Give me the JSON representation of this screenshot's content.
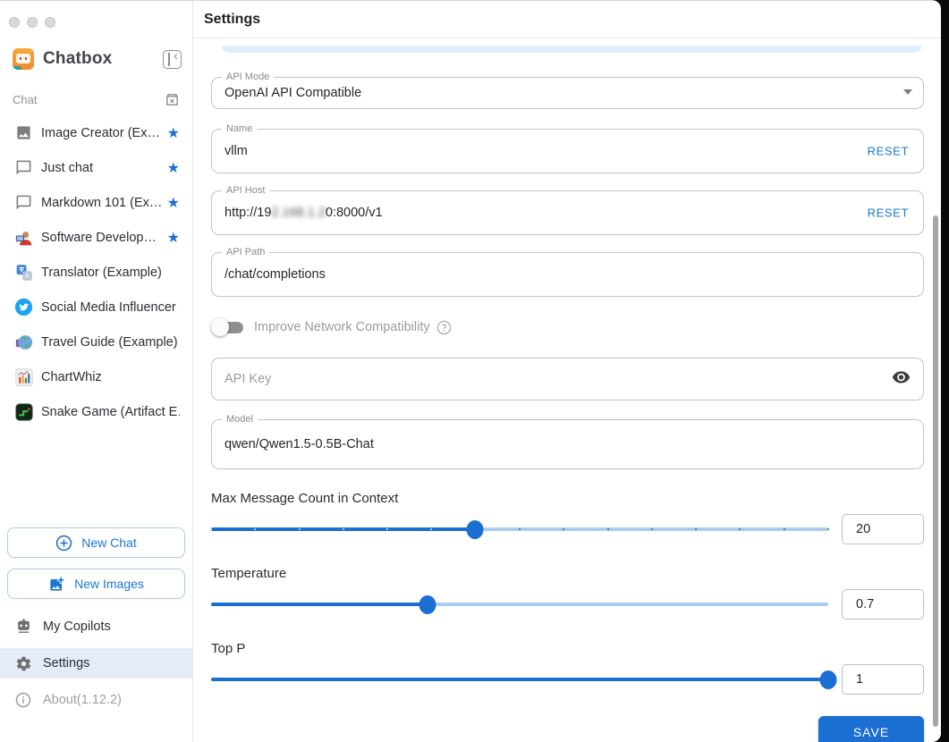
{
  "sidebar": {
    "app_title": "Chatbox",
    "section_label": "Chat",
    "items": [
      {
        "label": "Image Creator (Ex…",
        "icon": "image-icon",
        "starred": true
      },
      {
        "label": "Just chat",
        "icon": "chat-bubble-icon",
        "starred": true
      },
      {
        "label": "Markdown 101 (Ex…",
        "icon": "chat-bubble-icon",
        "starred": true
      },
      {
        "label": "Software Develop…",
        "icon": "developer-emoji-icon",
        "starred": true
      },
      {
        "label": "Translator (Example)",
        "icon": "translator-icon",
        "starred": false
      },
      {
        "label": "Social Media Influencer …",
        "icon": "twitter-icon",
        "starred": false
      },
      {
        "label": "Travel Guide (Example)",
        "icon": "globe-icon",
        "starred": false
      },
      {
        "label": "ChartWhiz",
        "icon": "chart-icon",
        "starred": false
      },
      {
        "label": "Snake Game (Artifact E…",
        "icon": "snake-icon",
        "starred": false
      }
    ],
    "new_chat_label": "New Chat",
    "new_images_label": "New Images",
    "my_copilots_label": "My Copilots",
    "settings_label": "Settings",
    "about_label": "About(1.12.2)"
  },
  "header": {
    "title": "Settings"
  },
  "form": {
    "api_mode": {
      "label": "API Mode",
      "value": "OpenAI API Compatible"
    },
    "name": {
      "label": "Name",
      "value": "vllm",
      "reset_label": "RESET"
    },
    "api_host": {
      "label": "API Host",
      "value_prefix": "http://19",
      "value_redacted": "2.168.1.2",
      "value_suffix": "0:8000/v1",
      "reset_label": "RESET"
    },
    "api_path": {
      "label": "API Path",
      "value": "/chat/completions"
    },
    "network_toggle": {
      "label": "Improve Network Compatibility",
      "state": "off"
    },
    "api_key": {
      "placeholder": "API Key"
    },
    "model": {
      "label": "Model",
      "value": "qwen/Qwen1.5-0.5B-Chat"
    },
    "sliders": [
      {
        "label": "Max Message Count in Context",
        "value": "20",
        "percent": 42.8,
        "marks": true
      },
      {
        "label": "Temperature",
        "value": "0.7",
        "percent": 35,
        "marks": false
      },
      {
        "label": "Top P",
        "value": "1",
        "percent": 100,
        "marks": false
      }
    ],
    "save_label": "SAVE"
  },
  "colors": {
    "primary_blue": "#1b6ed2",
    "reset_link": "#1976d2",
    "slider_rail": "#abccec",
    "selected_row_bg": "#e4edf7",
    "top_bar_blue": "#ddeefa"
  }
}
